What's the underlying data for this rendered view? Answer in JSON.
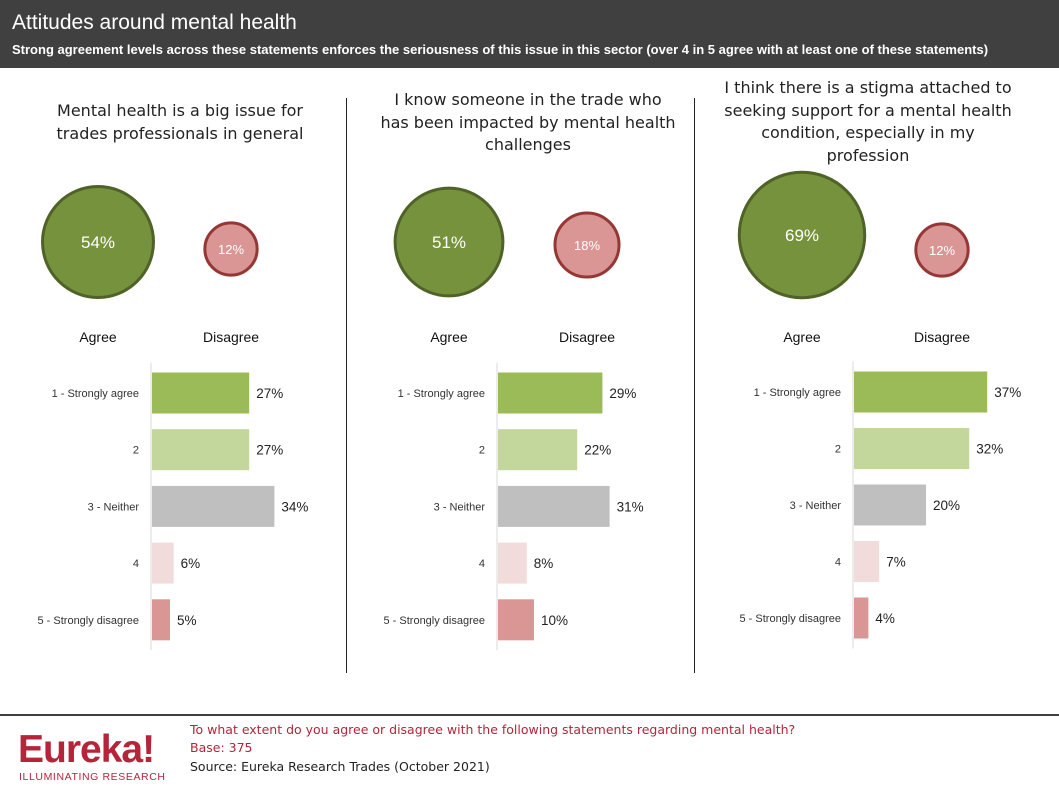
{
  "header": {
    "title": "Attitudes around mental health",
    "subtitle": "Strong agreement levels across these statements enforces the seriousness of this issue in this sector (over 4 in 5 agree with at least one of these statements)"
  },
  "colors": {
    "agree_fill": "#76923c",
    "agree_stroke": "#4f6228",
    "disagree_fill": "#da9694",
    "disagree_stroke": "#953735",
    "strongly_agree": "#9bbb59",
    "agree_2": "#c3d69b",
    "neither": "#bfbfbf",
    "disagree_4": "#f2dcdb",
    "strongly_disagree": "#da9694",
    "brand": "#b4253a"
  },
  "panels": [
    {
      "statement_lines": [
        "Mental health is a big issue for",
        "trades professionals in general"
      ],
      "agree_label": "Agree",
      "disagree_label": "Disagree",
      "agree_value": "54%",
      "disagree_value": "12%"
    },
    {
      "statement_lines": [
        "I know someone in the trade who",
        "has been impacted by mental health",
        "challenges"
      ],
      "agree_label": "Agree",
      "disagree_label": "Disagree",
      "agree_value": "51%",
      "disagree_value": "18%"
    },
    {
      "statement_lines": [
        "I think there is a stigma attached to",
        "seeking support for a mental health",
        "condition, especially in my",
        "profession"
      ],
      "agree_label": "Agree",
      "disagree_label": "Disagree",
      "agree_value": "69%",
      "disagree_value": "12%"
    }
  ],
  "chart_data": [
    {
      "type": "bar",
      "orientation": "horizontal",
      "categories": [
        "1 - Strongly agree",
        "2",
        "3 - Neither",
        "4",
        "5 - Strongly disagree"
      ],
      "values": [
        27,
        27,
        34,
        6,
        5
      ],
      "summary": {
        "agree": 54,
        "disagree": 12
      }
    },
    {
      "type": "bar",
      "orientation": "horizontal",
      "categories": [
        "1 - Strongly agree",
        "2",
        "3 - Neither",
        "4",
        "5 - Strongly disagree"
      ],
      "values": [
        29,
        22,
        31,
        8,
        10
      ],
      "summary": {
        "agree": 51,
        "disagree": 18
      }
    },
    {
      "type": "bar",
      "orientation": "horizontal",
      "categories": [
        "1 - Strongly agree",
        "2",
        "3 - Neither",
        "4",
        "5 - Strongly disagree"
      ],
      "values": [
        37,
        32,
        20,
        7,
        4
      ],
      "summary": {
        "agree": 69,
        "disagree": 12
      }
    }
  ],
  "footer": {
    "logo_word": "Eureka!",
    "logo_tagline": "ILLUMINATING RESEARCH",
    "question": "To what extent do you agree or disagree with the following statements regarding mental health?",
    "base": "Base: 375",
    "source": "Source: Eureka Research Trades (October 2021)"
  }
}
